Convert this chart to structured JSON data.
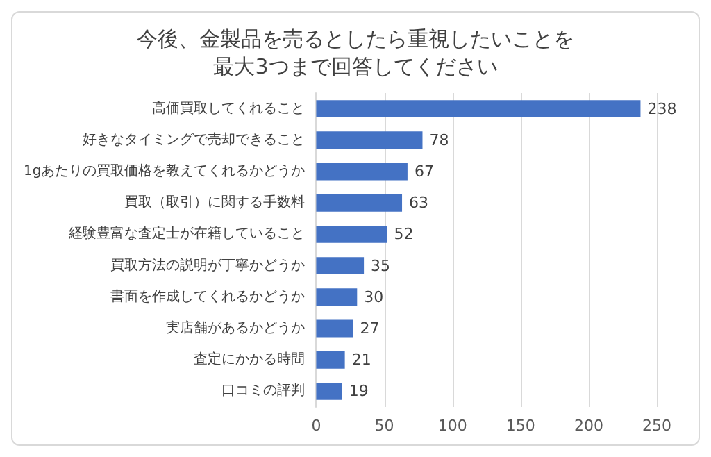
{
  "chart_data": {
    "type": "bar",
    "orientation": "horizontal",
    "title": "今後、金製品を売るとしたら重視したいことを最大3つまで回答してください",
    "categories": [
      "高価買取してくれること",
      "好きなタイミングで売却できること",
      "1gあたりの買取価格を教えてくれるかどうか",
      "買取（取引）に関する手数料",
      "経験豊富な査定士が在籍していること",
      "買取方法の説明が丁寧かどうか",
      "書面を作成してくれるかどうか",
      "実店舗があるかどうか",
      "査定にかかる時間",
      "口コミの評判"
    ],
    "values": [
      238,
      78,
      67,
      63,
      52,
      35,
      30,
      27,
      21,
      19
    ],
    "color": "#4472c4",
    "xlim": [
      0,
      250
    ],
    "xticks": [
      0,
      50,
      100,
      150,
      200,
      250
    ],
    "grid": "x",
    "data_labels": true
  }
}
